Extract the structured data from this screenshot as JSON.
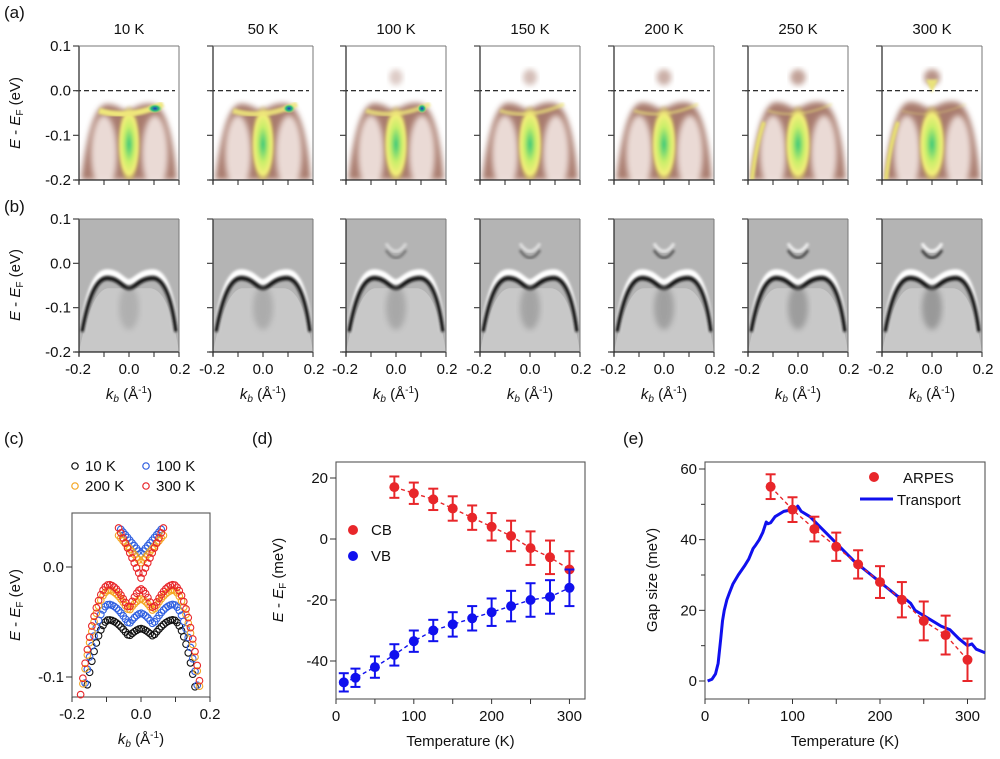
{
  "panel_labels": {
    "a": "(a)",
    "b": "(b)",
    "c": "(c)",
    "d": "(d)",
    "e": "(e)"
  },
  "chart_data": [
    {
      "id": "a",
      "type": "heatmap",
      "description": "ARPES intensity maps (color) vs temperature",
      "panel_titles": [
        "10 K",
        "50 K",
        "100 K",
        "150 K",
        "200 K",
        "250 K",
        "300 K"
      ],
      "ylabel": "E - E_F (eV)",
      "ylabel_parts": {
        "main": "E - E",
        "sub": "F",
        "unit": " (eV)"
      },
      "ylim": [
        -0.2,
        0.1
      ],
      "yticks": [
        "0.1",
        "0.0",
        "-0.1",
        "-0.2"
      ],
      "xlim": [
        -0.2,
        0.2
      ],
      "fermi_level_dashed_line": 0.0,
      "colormap": [
        "#ffffff",
        "#8b5a4a",
        "#f3f06a",
        "#3ec97a",
        "#1a3fc0"
      ]
    },
    {
      "id": "b",
      "type": "heatmap",
      "description": "Second-derivative (curvature) maps, grayscale",
      "panel_titles": [
        "10 K",
        "50 K",
        "100 K",
        "150 K",
        "200 K",
        "250 K",
        "300 K"
      ],
      "ylabel": "E - E_F (eV)",
      "ylim": [
        -0.2,
        0.1
      ],
      "yticks": [
        "0.1",
        "0.0",
        "-0.1",
        "-0.2"
      ],
      "xlim": [
        -0.2,
        0.2
      ],
      "xticks": [
        "-0.2",
        "0.0",
        "0.2"
      ],
      "xlabel": "k_b (Å^-1)",
      "xlabel_parts": {
        "main": "k",
        "sub": "b",
        "unit": " (Å",
        "sup": "-1",
        "close": ")"
      }
    },
    {
      "id": "c",
      "type": "scatter",
      "xlabel": "k_b (Å^-1)",
      "ylabel": "E - E_F (eV)",
      "xlim": [
        -0.2,
        0.2
      ],
      "ylim": [
        -0.118,
        0.038
      ],
      "xticks": [
        "-0.2",
        "0.0",
        "0.2"
      ],
      "yticks": [
        {
          "v": 0.0,
          "label": "0.0"
        },
        {
          "v": -0.1,
          "label": "-0.1"
        }
      ],
      "legend": [
        {
          "label": "10 K",
          "color": "#111111"
        },
        {
          "label": "100 K",
          "color": "#2f5fe0"
        },
        {
          "label": "200 K",
          "color": "#f5a623"
        },
        {
          "label": "300 K",
          "color": "#e8262a"
        }
      ],
      "series": [
        {
          "name": "10 K",
          "color": "#111111",
          "vb_max": -0.048,
          "vb_dip": -0.063,
          "vb_center": -0.056,
          "cb_min": null
        },
        {
          "name": "100 K",
          "color": "#2f5fe0",
          "vb_max": -0.034,
          "vb_dip": -0.052,
          "vb_center": -0.042,
          "cb_min": 0.012
        },
        {
          "name": "200 K",
          "color": "#f5a623",
          "vb_max": -0.021,
          "vb_dip": -0.04,
          "vb_center": -0.029,
          "cb_min": 0.004
        },
        {
          "name": "300 K",
          "color": "#e8262a",
          "vb_max": -0.016,
          "vb_dip": -0.038,
          "vb_center": -0.02,
          "cb_min": -0.01
        }
      ]
    },
    {
      "id": "d",
      "type": "scatter",
      "xlabel": "Temperature (K)",
      "ylabel": "E - E_F (meV)",
      "xlim": [
        0,
        320
      ],
      "ylim": [
        -53,
        25
      ],
      "xticks": [
        0,
        100,
        200,
        300
      ],
      "yticks": [
        20,
        0,
        -20,
        -40
      ],
      "legend_position": "middle-left",
      "series": [
        {
          "name": "CB",
          "color": "#e8262a",
          "x": [
            75,
            100,
            125,
            150,
            175,
            200,
            225,
            250,
            275,
            300
          ],
          "y": [
            17,
            15,
            13,
            10,
            7,
            4,
            1,
            -3,
            -6,
            -10
          ],
          "err": [
            3.5,
            3.5,
            3.5,
            4,
            4,
            4.5,
            5,
            5.5,
            5.5,
            6
          ]
        },
        {
          "name": "VB",
          "color": "#1010ee",
          "x": [
            10,
            25,
            50,
            75,
            100,
            125,
            150,
            175,
            200,
            225,
            250,
            275,
            300
          ],
          "y": [
            -47,
            -45.5,
            -42,
            -38,
            -33.5,
            -30,
            -28,
            -26,
            -24,
            -22,
            -20,
            -19,
            -16
          ],
          "err": [
            3,
            3,
            3.5,
            3.5,
            3.5,
            3.5,
            4,
            4,
            4.5,
            5,
            5.5,
            5.5,
            6
          ]
        }
      ]
    },
    {
      "id": "e",
      "type": "line",
      "xlabel": "Temperature (K)",
      "ylabel": "Gap size (meV)",
      "xlim": [
        0,
        320
      ],
      "ylim": [
        -5,
        65
      ],
      "xticks": [
        0,
        100,
        200,
        300
      ],
      "yticks": [
        0,
        20,
        40,
        60
      ],
      "legend_position": "top-right",
      "series": [
        {
          "name": "ARPES",
          "color": "#e8262a",
          "kind": "scatter-errorbar",
          "x": [
            75,
            100,
            125,
            150,
            175,
            200,
            225,
            250,
            275,
            300
          ],
          "y": [
            55,
            48.5,
            43,
            38,
            33,
            28,
            23,
            17,
            13,
            6
          ],
          "err": [
            3.5,
            3.5,
            3.5,
            4,
            4,
            4.5,
            5,
            5.5,
            5.5,
            6
          ]
        },
        {
          "name": "Transport",
          "color": "#1010ee",
          "kind": "line",
          "x": [
            3,
            8,
            12,
            15,
            18,
            20,
            22,
            25,
            28,
            32,
            38,
            45,
            50,
            55,
            58,
            62,
            66,
            70,
            72,
            75,
            80,
            90,
            100,
            103,
            106,
            110,
            120,
            130,
            140,
            150,
            160,
            170,
            180,
            190,
            200,
            210,
            220,
            230,
            235,
            240,
            250,
            260,
            270,
            280,
            290,
            300,
            305,
            310,
            320
          ],
          "y": [
            0,
            0.5,
            2,
            5,
            12,
            17,
            20,
            23,
            25,
            27.5,
            30,
            32.5,
            34.5,
            37.5,
            38.5,
            40,
            42,
            45,
            44.5,
            44.8,
            46.5,
            48,
            48.5,
            48,
            49.5,
            48,
            46.5,
            44,
            41.5,
            39,
            36.5,
            34,
            32,
            30,
            28,
            26,
            24,
            23,
            22,
            20,
            18.5,
            17,
            15.5,
            14.5,
            12,
            10,
            10.5,
            9,
            8
          ]
        }
      ]
    }
  ]
}
